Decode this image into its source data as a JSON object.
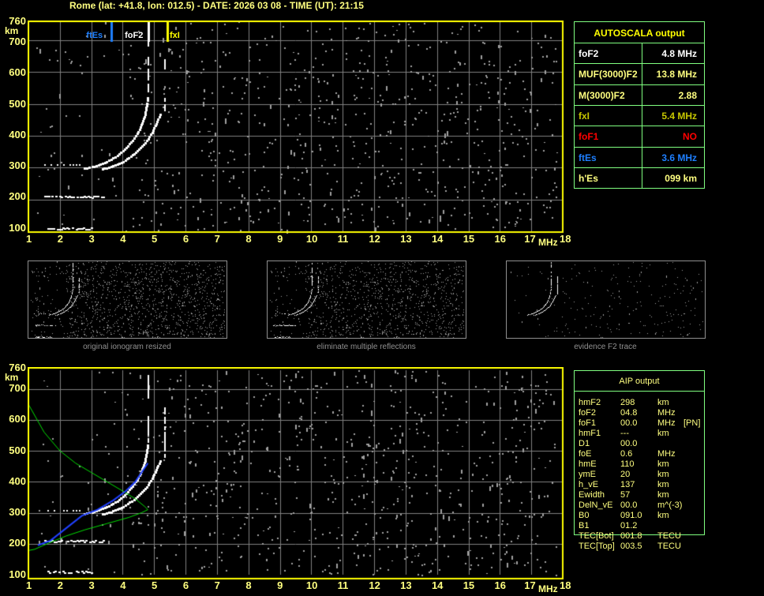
{
  "title": "Rome (lat: +41.8, lon: 012.5) - DATE: 2026 03 08 - TIME (UT): 21:15",
  "colors": {
    "axis": "#ffff00",
    "grid": "#808080",
    "table_border": "#80ff80",
    "label": "#ffff80",
    "ftEs": "#1e7fff",
    "foF1": "#ff0000",
    "fxI": "#c8c800",
    "model_profile": "#00e000",
    "true_height": "#2040ff"
  },
  "autoscala": {
    "header": "AUTOSCALA output",
    "rows": [
      {
        "name": "foF2",
        "value": "4.8 MHz",
        "color": "#ffffff"
      },
      {
        "name": "MUF(3000)F2",
        "value": "13.8 MHz",
        "color": "#ffff80"
      },
      {
        "name": "M(3000)F2",
        "value": "2.88",
        "color": "#ffff80"
      },
      {
        "name": "fxI",
        "value": "5.4 MHz",
        "color": "#c8c800"
      },
      {
        "name": "foF1",
        "value": "NO",
        "color": "#ff0000"
      },
      {
        "name": "ftEs",
        "value": "3.6 MHz",
        "color": "#1e7fff"
      },
      {
        "name": "h'Es",
        "value": "099     km",
        "color": "#ffff80"
      }
    ]
  },
  "aip": {
    "header": "AIP output",
    "rows": [
      {
        "name": "hmF2",
        "value": "298",
        "unit": "km",
        "extra": ""
      },
      {
        "name": "foF2",
        "value": "04.8",
        "unit": "MHz",
        "extra": ""
      },
      {
        "name": "foF1",
        "value": "00.0",
        "unit": "MHz",
        "extra": "[PN]"
      },
      {
        "name": "hmF1",
        "value": "---",
        "unit": "km",
        "extra": ""
      },
      {
        "name": "D1",
        "value": "00.0",
        "unit": "",
        "extra": ""
      },
      {
        "name": "foE",
        "value": "0.6",
        "unit": "MHz",
        "extra": ""
      },
      {
        "name": "hmE",
        "value": "110",
        "unit": "km",
        "extra": ""
      },
      {
        "name": "ymE",
        "value": "20",
        "unit": "km",
        "extra": ""
      },
      {
        "name": "h_vE",
        "value": "137",
        "unit": "km",
        "extra": ""
      },
      {
        "name": "Ewidth",
        "value": "57",
        "unit": "km",
        "extra": ""
      },
      {
        "name": "DelN_vE",
        "value": "00.0",
        "unit": "m^(-3)",
        "extra": ""
      },
      {
        "name": "B0",
        "value": "091.0",
        "unit": "km",
        "extra": ""
      },
      {
        "name": "B1",
        "value": "01.2",
        "unit": "",
        "extra": ""
      },
      {
        "name": "TEC[Bot]",
        "value": "001.8",
        "unit": "TECU",
        "extra": ""
      },
      {
        "name": "TEC[Top]",
        "value": "003.5",
        "unit": "TECU",
        "extra": ""
      }
    ]
  },
  "thumbnails": [
    {
      "caption": "original ionogram resized"
    },
    {
      "caption": "eliminate multiple reflections"
    },
    {
      "caption": "evidence F2 trace"
    }
  ],
  "chart_data": [
    {
      "type": "scatter",
      "xlabel": "MHz",
      "ylabel": "km",
      "xlim": [
        1,
        18
      ],
      "ylim": [
        100,
        760
      ],
      "xticks": [
        "1",
        "2",
        "3",
        "4",
        "5",
        "6",
        "7",
        "8",
        "9",
        "10",
        "11",
        "12",
        "13",
        "14",
        "15",
        "16",
        "17",
        "18"
      ],
      "yticks": [
        "100",
        "200",
        "300",
        "400",
        "500",
        "600",
        "700",
        "760"
      ],
      "grid": true,
      "markers": [
        {
          "label": "ftEs",
          "x": 3.6,
          "color": "#1e7fff"
        },
        {
          "label": "foF2",
          "x": 4.8,
          "color": "#ffffff"
        },
        {
          "label": "fxI",
          "x": 5.4,
          "color": "#ffff00"
        }
      ],
      "traces": {
        "o_trace": [
          [
            2.75,
            300
          ],
          [
            3.0,
            305
          ],
          [
            3.4,
            318
          ],
          [
            3.8,
            340
          ],
          [
            4.1,
            365
          ],
          [
            4.35,
            395
          ],
          [
            4.55,
            430
          ],
          [
            4.68,
            470
          ],
          [
            4.75,
            505
          ],
          [
            4.78,
            530
          ]
        ],
        "x_trace": [
          [
            3.33,
            298
          ],
          [
            3.6,
            305
          ],
          [
            4.0,
            322
          ],
          [
            4.4,
            350
          ],
          [
            4.7,
            380
          ],
          [
            4.95,
            420
          ],
          [
            5.1,
            455
          ],
          [
            5.2,
            478
          ]
        ],
        "es_trace_1": [
          [
            1.5,
            210
          ],
          [
            3.4,
            210
          ]
        ],
        "es_trace_2": [
          [
            1.6,
            110
          ],
          [
            3.0,
            110
          ]
        ]
      }
    },
    {
      "type": "line",
      "xlabel": "MHz",
      "ylabel": "km",
      "xlim": [
        1,
        18
      ],
      "ylim": [
        100,
        760
      ],
      "xticks": [
        "1",
        "2",
        "3",
        "4",
        "5",
        "6",
        "7",
        "8",
        "9",
        "10",
        "11",
        "12",
        "13",
        "14",
        "15",
        "16",
        "17",
        "18"
      ],
      "yticks": [
        "100",
        "200",
        "300",
        "400",
        "500",
        "600",
        "700",
        "760"
      ],
      "grid": true,
      "series": [
        {
          "kind": "model_profile",
          "points": [
            [
              1.0,
              650
            ],
            [
              1.5,
              560
            ],
            [
              2.0,
              500
            ],
            [
              2.5,
              460
            ],
            [
              3.0,
              430
            ],
            [
              3.5,
              400
            ],
            [
              4.0,
              370
            ],
            [
              4.4,
              345
            ],
            [
              4.7,
              320
            ],
            [
              4.8,
              310
            ],
            [
              4.6,
              300
            ],
            [
              4.2,
              285
            ],
            [
              3.5,
              265
            ],
            [
              2.8,
              245
            ],
            [
              2.2,
              225
            ],
            [
              1.6,
              200
            ],
            [
              1.2,
              182
            ],
            [
              1.0,
              178
            ]
          ]
        },
        {
          "kind": "true_height",
          "points": [
            [
              1.3,
              195
            ],
            [
              1.7,
              210
            ],
            [
              2.2,
              250
            ],
            [
              2.7,
              290
            ],
            [
              3.2,
              310
            ],
            [
              3.7,
              340
            ],
            [
              4.1,
              370
            ],
            [
              4.4,
              400
            ],
            [
              4.6,
              430
            ],
            [
              4.8,
              460
            ]
          ]
        }
      ]
    }
  ]
}
